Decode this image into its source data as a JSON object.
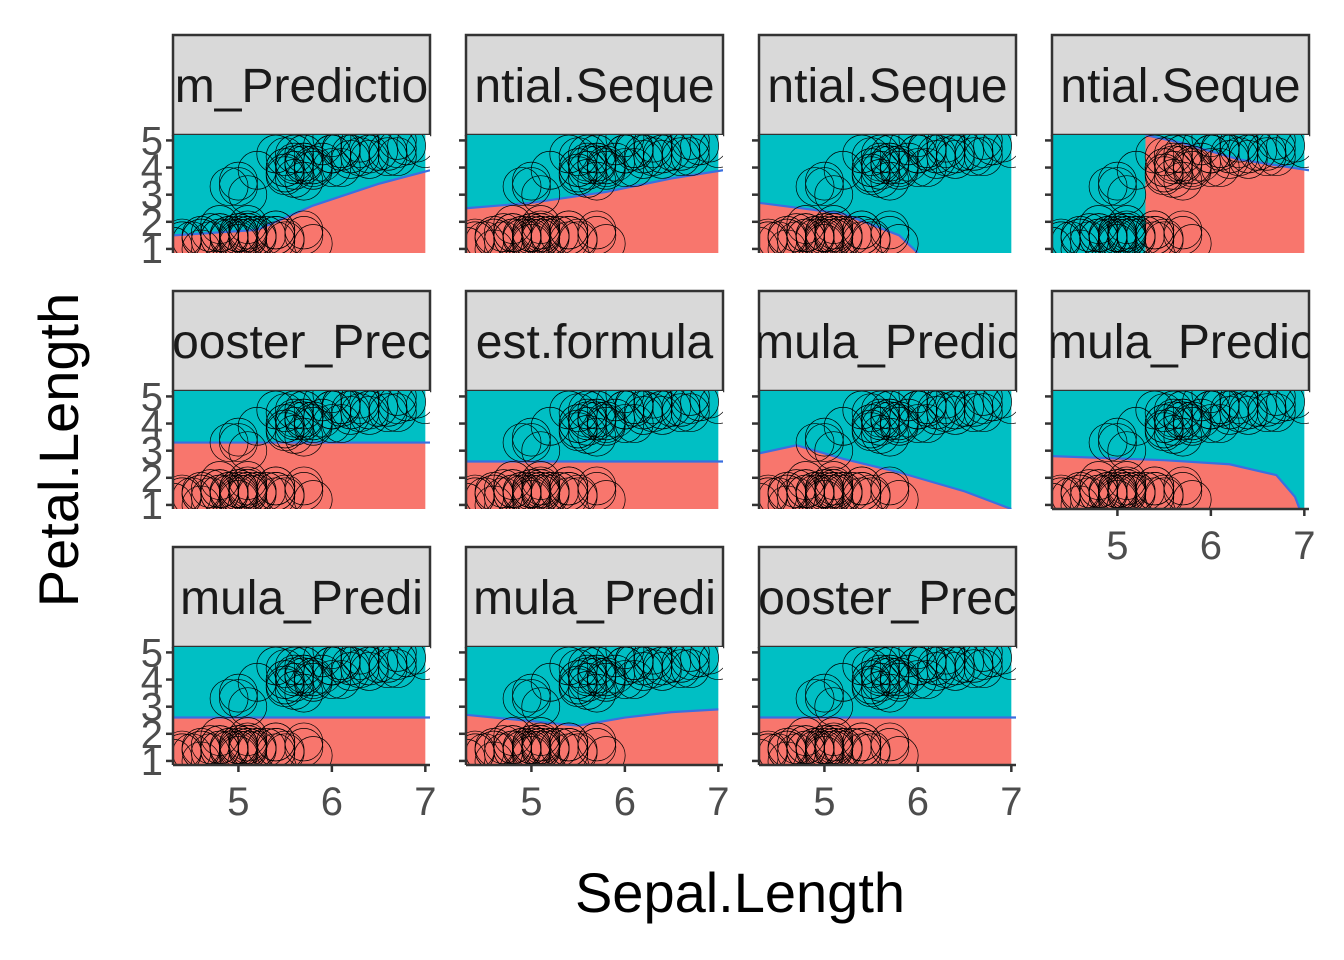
{
  "colors": {
    "class_a": "#f8766d",
    "class_b": "#00bfc4",
    "boundary": "#3a6fe0",
    "strip_fill": "#d9d9d9",
    "frame": "#333333",
    "point_stroke": "#000000"
  },
  "chart_data": {
    "type": "scatter",
    "subtype": "faceted decision-boundary plot",
    "xlabel": "Sepal.Length",
    "ylabel": "Petal.Length",
    "xlim": [
      4.3,
      7.05
    ],
    "ylim": [
      0.85,
      5.2
    ],
    "x_ticks": [
      5,
      6,
      7
    ],
    "y_ticks": [
      1,
      2,
      3,
      4,
      5
    ],
    "facets": [
      {
        "strip": "m_Predictio",
        "boundary": [
          [
            4.3,
            1.5
          ],
          [
            5.2,
            1.7
          ],
          [
            5.8,
            2.6
          ],
          [
            6.5,
            3.4
          ],
          [
            7.05,
            3.9
          ]
        ],
        "region_below": "class_a"
      },
      {
        "strip": "ntial.Seque",
        "boundary": [
          [
            4.3,
            2.5
          ],
          [
            5.0,
            2.7
          ],
          [
            5.8,
            3.1
          ],
          [
            6.5,
            3.6
          ],
          [
            7.05,
            3.9
          ]
        ],
        "region_below": "class_a"
      },
      {
        "strip": "ntial.Seque",
        "boundary": [
          [
            4.3,
            2.7
          ],
          [
            5.2,
            2.3
          ],
          [
            5.8,
            1.5
          ],
          [
            6.0,
            0.85
          ]
        ],
        "region_below": "class_a"
      },
      {
        "strip": "ntial.Seque",
        "boundary": [
          [
            5.3,
            5.2
          ],
          [
            5.7,
            4.9
          ],
          [
            6.3,
            4.3
          ],
          [
            7.05,
            3.9
          ]
        ],
        "region_below": "class_a"
      },
      {
        "strip": "ooster_Prec",
        "boundary": [
          [
            4.3,
            3.3
          ],
          [
            7.05,
            3.3
          ]
        ],
        "region_below": "class_a"
      },
      {
        "strip": "est.formula",
        "boundary": [
          [
            4.3,
            2.6
          ],
          [
            7.05,
            2.6
          ]
        ],
        "region_below": "class_a"
      },
      {
        "strip": "mula_Predic",
        "boundary": [
          [
            4.3,
            2.9
          ],
          [
            4.7,
            3.2
          ],
          [
            5.2,
            2.7
          ],
          [
            5.8,
            2.2
          ],
          [
            6.5,
            1.5
          ],
          [
            7.0,
            0.85
          ]
        ],
        "region_below": "class_a"
      },
      {
        "strip": "mula_Predic",
        "boundary": [
          [
            4.3,
            2.8
          ],
          [
            5.5,
            2.65
          ],
          [
            6.2,
            2.5
          ],
          [
            6.7,
            2.1
          ],
          [
            6.9,
            1.3
          ],
          [
            6.95,
            0.85
          ]
        ],
        "region_below": "class_a"
      },
      {
        "strip": "mula_Predi",
        "boundary": [
          [
            4.3,
            2.6
          ],
          [
            7.05,
            2.6
          ]
        ],
        "region_below": "class_a"
      },
      {
        "strip": "mula_Predi",
        "boundary": [
          [
            4.3,
            2.7
          ],
          [
            5.5,
            2.3
          ],
          [
            6.0,
            2.6
          ],
          [
            6.5,
            2.8
          ],
          [
            7.0,
            2.9
          ]
        ],
        "region_below": "class_a"
      },
      {
        "strip": "ooster_Prec",
        "boundary": [
          [
            4.3,
            2.6
          ],
          [
            7.05,
            2.6
          ]
        ],
        "region_below": "class_a"
      }
    ],
    "points": [
      [
        5.1,
        1.4
      ],
      [
        4.9,
        1.4
      ],
      [
        4.7,
        1.3
      ],
      [
        4.6,
        1.5
      ],
      [
        5.0,
        1.4
      ],
      [
        5.4,
        1.7
      ],
      [
        4.6,
        1.4
      ],
      [
        5.0,
        1.5
      ],
      [
        4.4,
        1.4
      ],
      [
        4.9,
        1.5
      ],
      [
        5.4,
        1.5
      ],
      [
        4.8,
        1.6
      ],
      [
        4.8,
        1.4
      ],
      [
        4.3,
        1.1
      ],
      [
        5.8,
        1.2
      ],
      [
        5.7,
        1.5
      ],
      [
        5.4,
        1.3
      ],
      [
        5.1,
        1.4
      ],
      [
        5.7,
        1.7
      ],
      [
        5.1,
        1.5
      ],
      [
        5.4,
        1.7
      ],
      [
        5.1,
        1.5
      ],
      [
        4.6,
        1.0
      ],
      [
        5.1,
        1.7
      ],
      [
        4.8,
        1.9
      ],
      [
        5.0,
        1.6
      ],
      [
        5.0,
        1.6
      ],
      [
        5.2,
        1.5
      ],
      [
        5.2,
        1.4
      ],
      [
        4.7,
        1.6
      ],
      [
        4.8,
        1.6
      ],
      [
        5.4,
        1.5
      ],
      [
        5.2,
        1.5
      ],
      [
        5.5,
        1.4
      ],
      [
        4.9,
        1.5
      ],
      [
        5.0,
        1.2
      ],
      [
        5.5,
        1.3
      ],
      [
        4.9,
        1.4
      ],
      [
        4.4,
        1.3
      ],
      [
        5.1,
        1.5
      ],
      [
        5.0,
        1.3
      ],
      [
        4.5,
        1.3
      ],
      [
        4.4,
        1.3
      ],
      [
        5.0,
        1.6
      ],
      [
        5.1,
        1.9
      ],
      [
        4.8,
        1.4
      ],
      [
        5.1,
        1.6
      ],
      [
        4.6,
        1.4
      ],
      [
        5.3,
        1.5
      ],
      [
        5.0,
        1.4
      ],
      [
        7.0,
        4.7
      ],
      [
        6.4,
        4.5
      ],
      [
        6.9,
        4.9
      ],
      [
        5.5,
        4.0
      ],
      [
        6.5,
        4.6
      ],
      [
        5.7,
        4.5
      ],
      [
        6.3,
        4.7
      ],
      [
        4.9,
        3.3
      ],
      [
        6.6,
        4.6
      ],
      [
        5.2,
        3.9
      ],
      [
        5.0,
        3.5
      ],
      [
        5.9,
        4.2
      ],
      [
        6.0,
        4.0
      ],
      [
        6.1,
        4.7
      ],
      [
        5.6,
        3.6
      ],
      [
        6.7,
        4.4
      ],
      [
        5.6,
        4.5
      ],
      [
        5.8,
        4.1
      ],
      [
        6.2,
        4.5
      ],
      [
        5.6,
        3.9
      ],
      [
        5.9,
        4.8
      ],
      [
        6.1,
        4.0
      ],
      [
        6.3,
        4.9
      ],
      [
        6.1,
        4.7
      ],
      [
        6.4,
        4.3
      ],
      [
        6.6,
        4.4
      ],
      [
        6.8,
        4.8
      ],
      [
        6.7,
        5.0
      ],
      [
        6.0,
        4.5
      ],
      [
        5.7,
        3.5
      ],
      [
        5.5,
        3.8
      ],
      [
        5.5,
        3.7
      ],
      [
        5.8,
        3.9
      ],
      [
        6.0,
        5.1
      ],
      [
        5.4,
        4.5
      ],
      [
        6.0,
        4.5
      ],
      [
        6.7,
        4.7
      ],
      [
        6.3,
        4.4
      ],
      [
        5.6,
        4.1
      ],
      [
        5.5,
        4.0
      ],
      [
        5.5,
        4.4
      ],
      [
        6.1,
        4.6
      ],
      [
        5.8,
        4.0
      ],
      [
        5.0,
        3.3
      ],
      [
        5.6,
        4.2
      ],
      [
        5.7,
        4.2
      ],
      [
        5.7,
        4.2
      ],
      [
        6.2,
        4.3
      ],
      [
        5.1,
        3.0
      ],
      [
        5.7,
        4.1
      ]
    ]
  }
}
